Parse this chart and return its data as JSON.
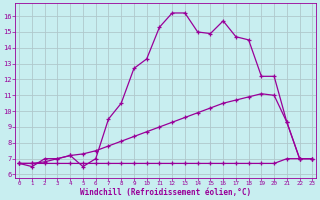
{
  "xlabel": "Windchill (Refroidissement éolien,°C)",
  "background_color": "#c8eef0",
  "grid_color": "#b0c8cc",
  "line_color": "#990099",
  "x_ticks": [
    0,
    1,
    2,
    3,
    4,
    5,
    6,
    7,
    8,
    9,
    10,
    11,
    12,
    13,
    14,
    15,
    16,
    17,
    18,
    19,
    20,
    21,
    22,
    23
  ],
  "y_ticks": [
    6,
    7,
    8,
    9,
    10,
    11,
    12,
    13,
    14,
    15,
    16
  ],
  "ylim": [
    5.8,
    16.8
  ],
  "xlim": [
    -0.3,
    23.3
  ],
  "series1_y": [
    6.7,
    6.5,
    7.0,
    7.0,
    7.2,
    6.5,
    7.0,
    9.5,
    10.5,
    12.7,
    13.3,
    15.3,
    16.2,
    16.2,
    15.0,
    14.9,
    15.7,
    14.7,
    14.5,
    12.2,
    12.2,
    9.3,
    7.0,
    7.0
  ],
  "series2_y": [
    6.7,
    6.7,
    6.7,
    6.7,
    6.7,
    6.7,
    6.7,
    6.7,
    6.7,
    6.7,
    6.7,
    6.7,
    6.7,
    6.7,
    6.7,
    6.7,
    6.7,
    6.7,
    6.7,
    6.7,
    6.7,
    7.0,
    7.0,
    7.0
  ],
  "series3_y": [
    6.7,
    6.7,
    6.8,
    7.0,
    7.2,
    7.3,
    7.5,
    7.8,
    8.1,
    8.4,
    8.7,
    9.0,
    9.3,
    9.6,
    9.9,
    10.2,
    10.5,
    10.7,
    10.9,
    11.1,
    11.0,
    9.3,
    7.0,
    7.0
  ]
}
